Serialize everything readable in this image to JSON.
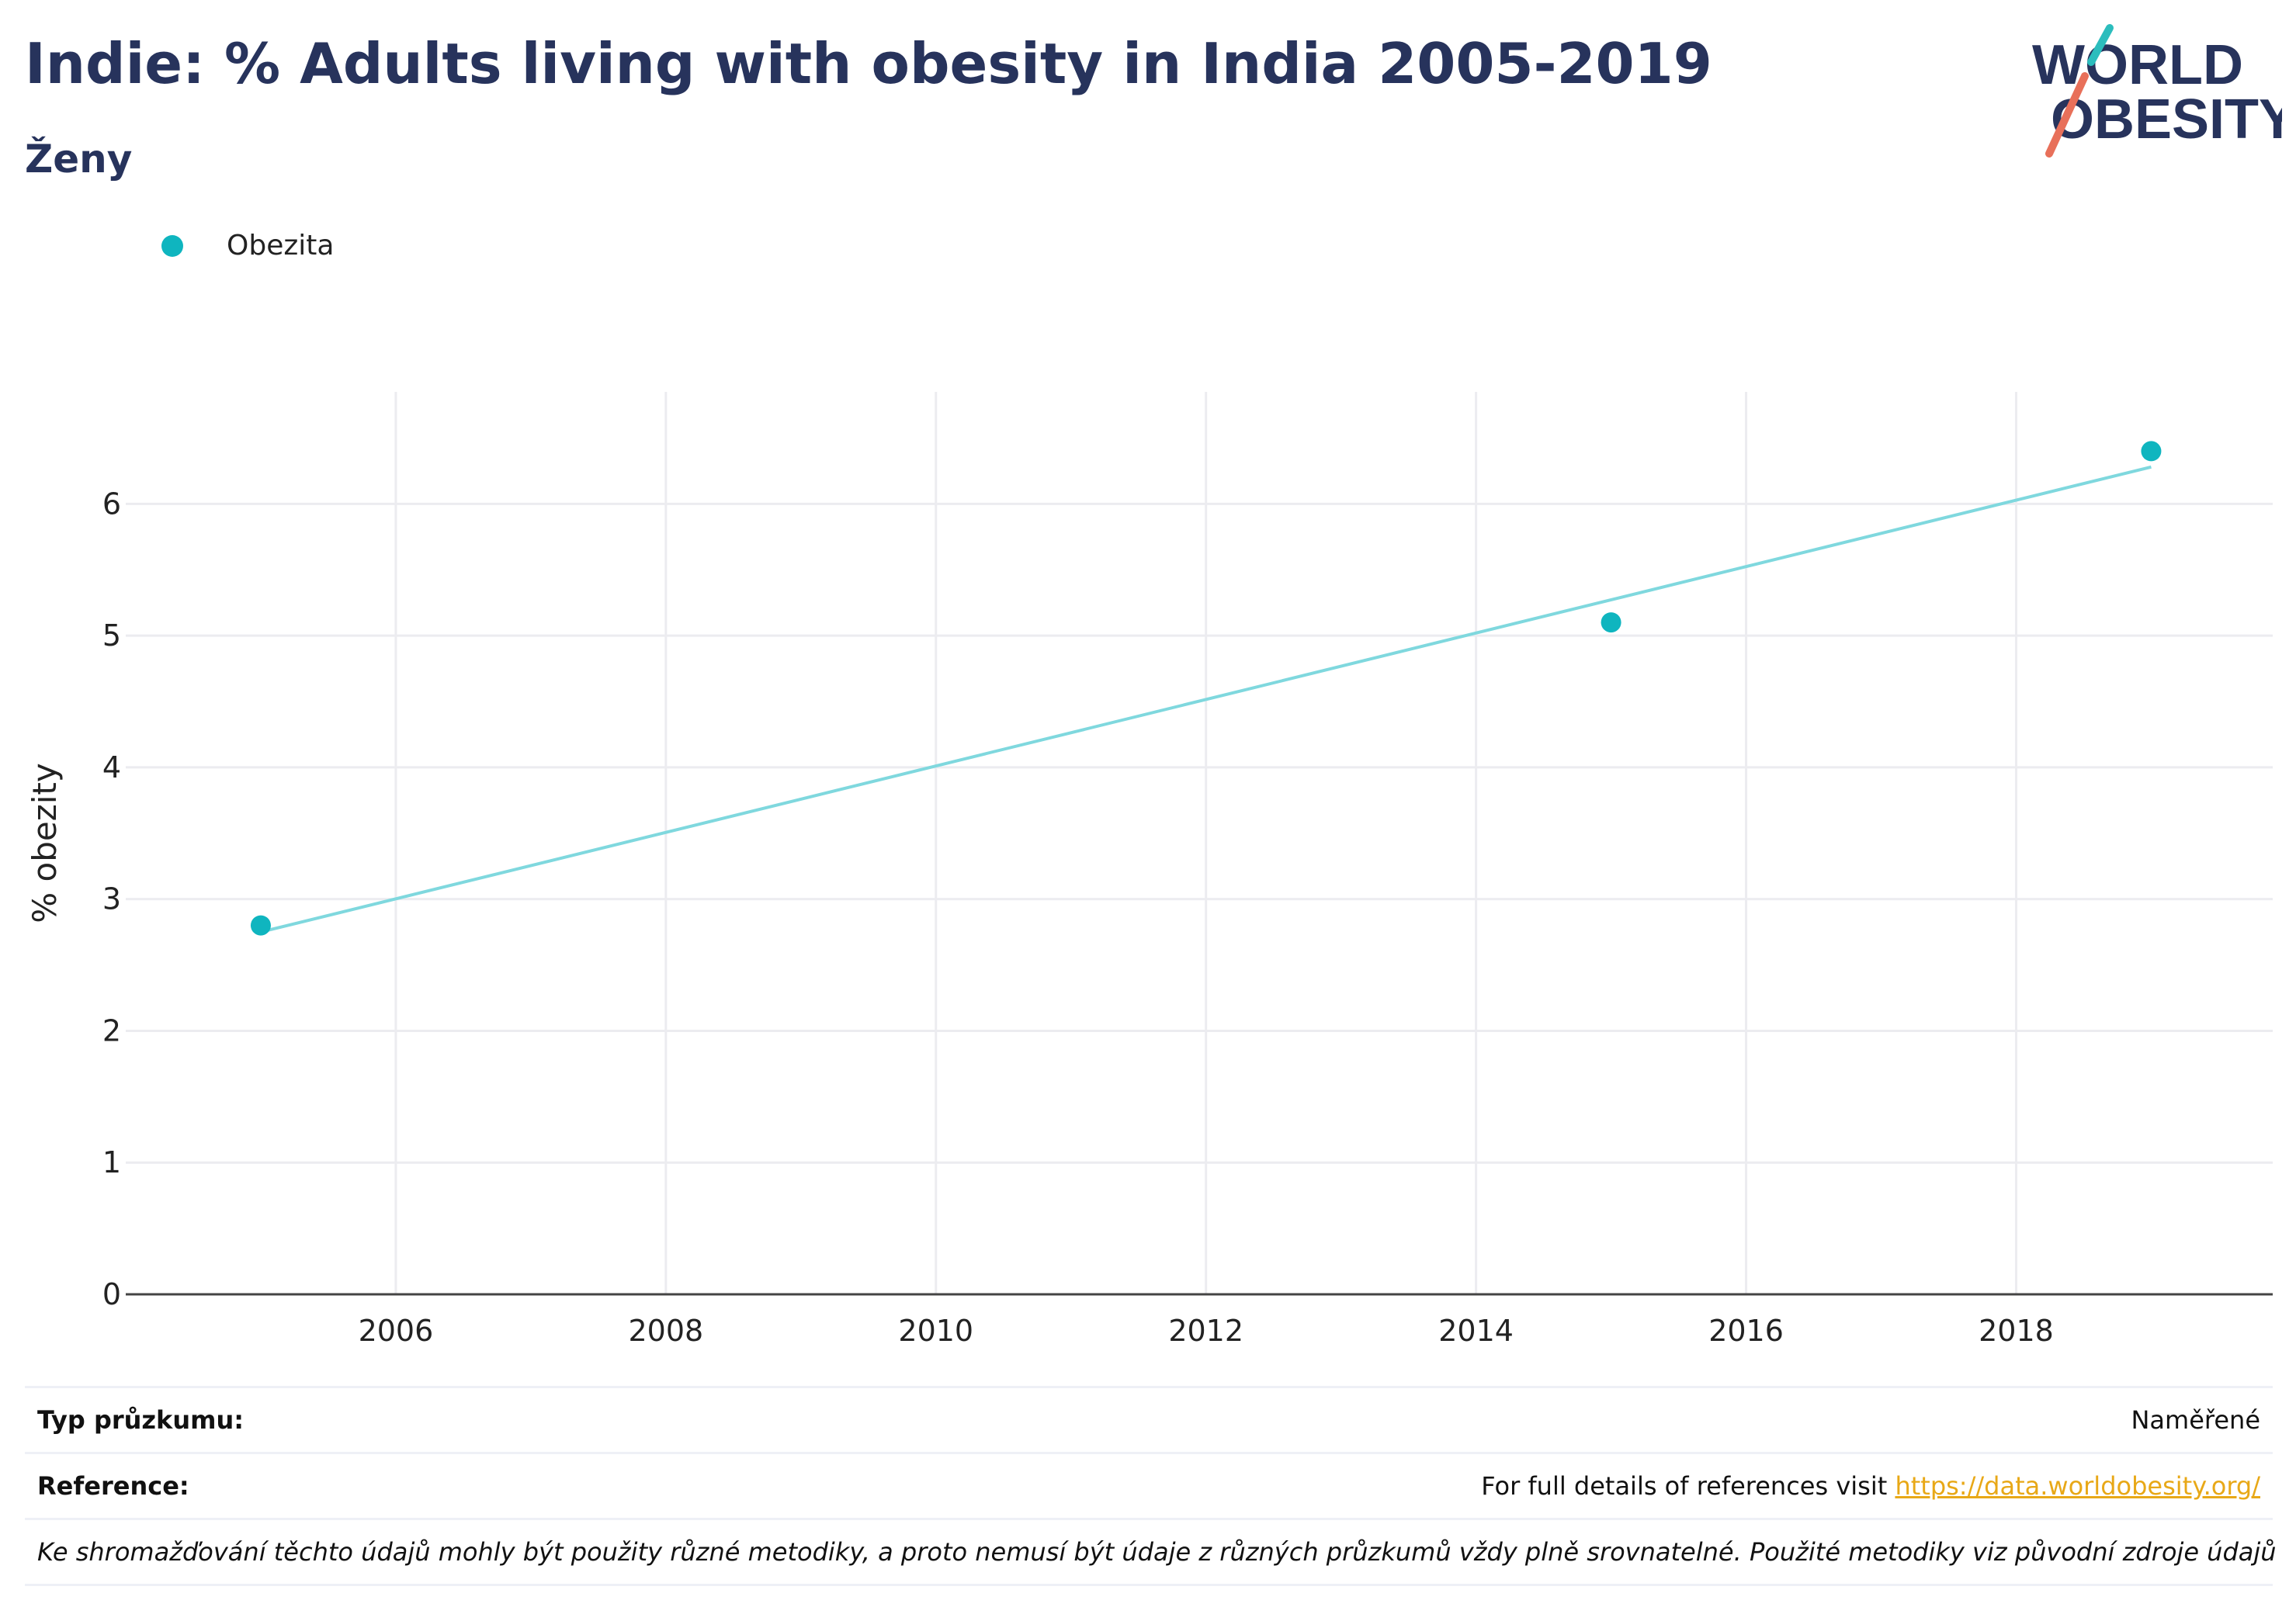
{
  "header": {
    "title": "Indie: % Adults living with obesity in India 2005-2019",
    "subtitle": "Ženy"
  },
  "logo": {
    "line1": "WORLD",
    "line2": "OBESITY",
    "text_color": "#27335c",
    "accent_teal": "#2cbdbd",
    "accent_coral": "#e8705a"
  },
  "legend": {
    "items": [
      {
        "label": "Obezita",
        "color": "#0fb5bf"
      }
    ]
  },
  "chart_data": {
    "type": "scatter",
    "title": "Indie: % Adults living with obesity in India 2005-2019",
    "subtitle": "Ženy",
    "xlabel": "",
    "ylabel": "% obezity",
    "xlim": [
      2004.0,
      2019.9
    ],
    "ylim": [
      0,
      6.85
    ],
    "x_ticks": [
      2006,
      2008,
      2010,
      2012,
      2014,
      2016,
      2018
    ],
    "y_ticks": [
      0,
      1,
      2,
      3,
      4,
      5,
      6
    ],
    "grid": true,
    "legend_position": "top-left",
    "series": [
      {
        "name": "Obezita",
        "color": "#0fb5bf",
        "points": [
          {
            "x": 2005,
            "y": 2.8
          },
          {
            "x": 2015,
            "y": 5.1
          },
          {
            "x": 2019,
            "y": 6.4
          }
        ]
      }
    ],
    "trendline": {
      "color": "#7fd8de",
      "x": [
        2005,
        2019
      ],
      "y": [
        2.75,
        6.28
      ]
    }
  },
  "footer": {
    "survey_type_label": "Typ průzkumu:",
    "survey_type_value": "Naměřené",
    "reference_label": "Reference:",
    "reference_text": "For full details of references visit",
    "reference_link": "https://data.worldobesity.org/",
    "note": "Ke shromažďování těchto údajů mohly být použity různé metodiky, a proto nemusí být údaje z různých průzkumů vždy plně srovnatelné. Použité metodiky viz původní zdroje údajů"
  }
}
